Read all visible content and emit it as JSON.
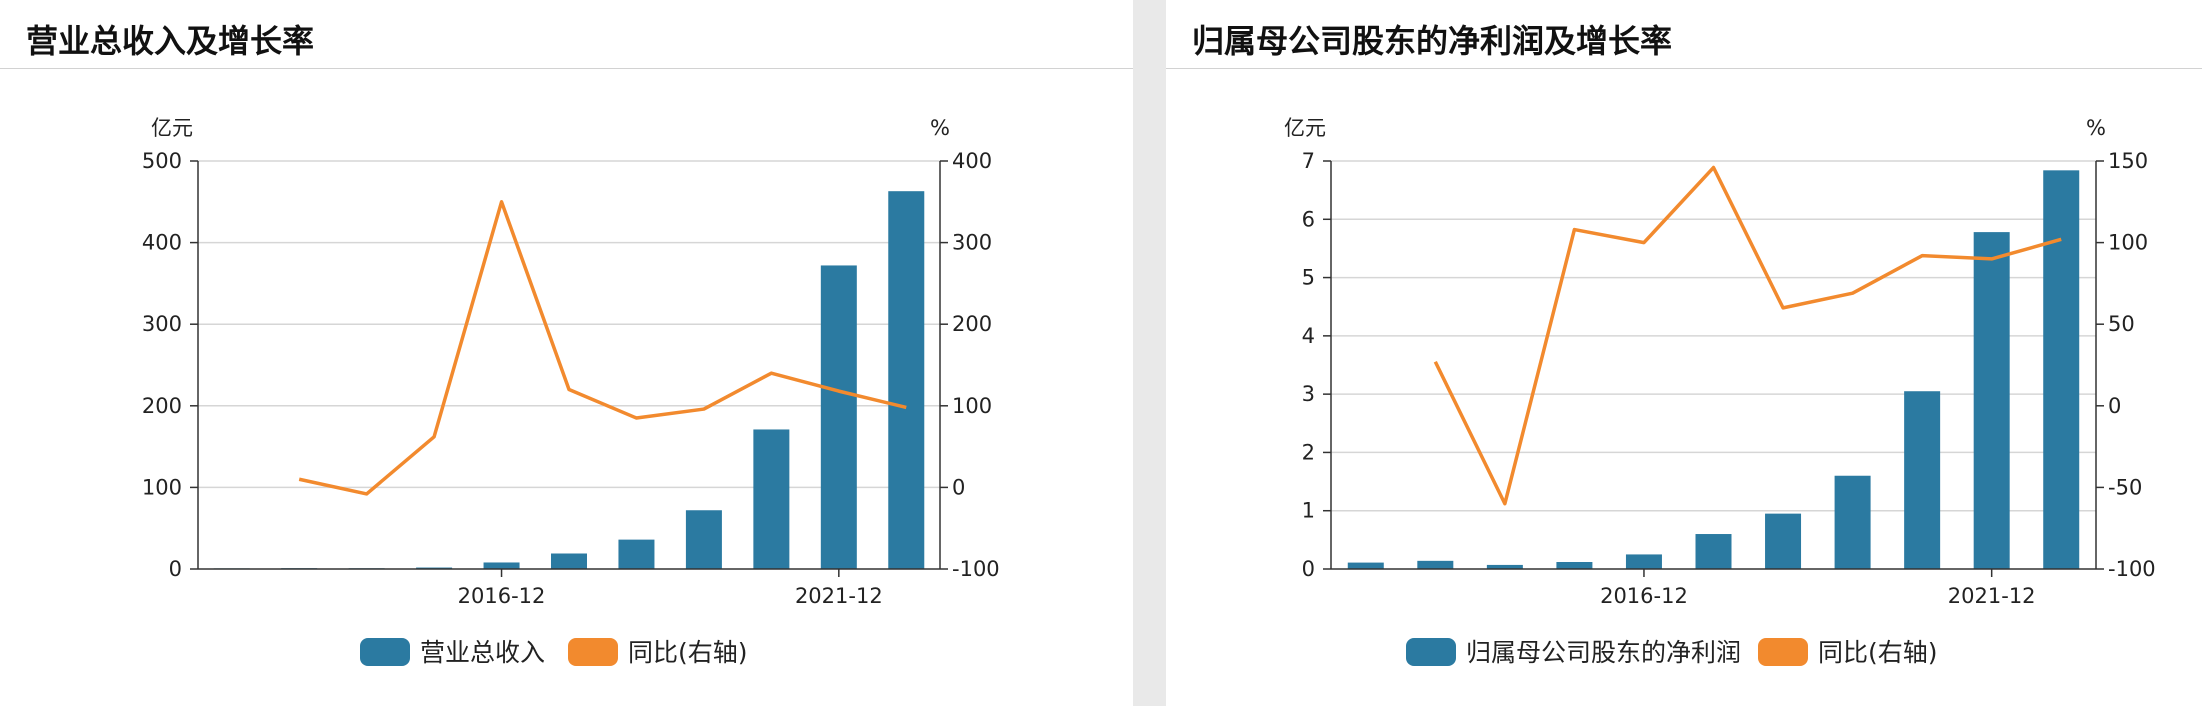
{
  "colors": {
    "bar": "#2b7aa1",
    "line": "#f28a2e",
    "grid": "#d6d6d6",
    "axis": "#333333"
  },
  "panels": [
    {
      "title": "营业总收入及增长率",
      "chart_data": {
        "type": "bar",
        "title": "",
        "xlabel": "",
        "ylabel": "亿元",
        "y2label": "%",
        "ylim": [
          0,
          500
        ],
        "y2lim": [
          -100,
          400
        ],
        "yticks": [
          0,
          100,
          200,
          300,
          400,
          500
        ],
        "y2ticks": [
          -100,
          0,
          100,
          200,
          300,
          400
        ],
        "xtick_labels": [
          {
            "index": 4,
            "label": "2016-12"
          },
          {
            "index": 9,
            "label": "2021-12"
          }
        ],
        "grid": true,
        "legend_position": "bottom",
        "categories": [
          "",
          "",
          "",
          "",
          "",
          "",
          "",
          "",
          "",
          "",
          ""
        ],
        "series": [
          {
            "name": "营业总收入",
            "kind": "bar",
            "axis": "left",
            "values": [
              0.8,
              1.0,
              0.9,
              1.8,
              8,
              19,
              36,
              72,
              171,
              372,
              463
            ]
          },
          {
            "name": "同比(右轴)",
            "kind": "line",
            "axis": "right",
            "values": [
              null,
              10,
              -8,
              62,
              350,
              120,
              85,
              96,
              140,
              118,
              98
            ]
          }
        ]
      }
    },
    {
      "title": "归属母公司股东的净利润及增长率",
      "chart_data": {
        "type": "bar",
        "title": "",
        "xlabel": "",
        "ylabel": "亿元",
        "y2label": "%",
        "ylim": [
          0,
          7
        ],
        "y2lim": [
          -100,
          150
        ],
        "yticks": [
          0,
          1,
          2,
          3,
          4,
          5,
          6,
          7
        ],
        "y2ticks": [
          -100,
          -50,
          0,
          50,
          100,
          150
        ],
        "xtick_labels": [
          {
            "index": 4,
            "label": "2016-12"
          },
          {
            "index": 9,
            "label": "2021-12"
          }
        ],
        "grid": true,
        "legend_position": "bottom",
        "categories": [
          "",
          "",
          "",
          "",
          "",
          "",
          "",
          "",
          "",
          "",
          ""
        ],
        "series": [
          {
            "name": "归属母公司股东的净利润",
            "kind": "bar",
            "axis": "left",
            "values": [
              0.11,
              0.14,
              0.07,
              0.12,
              0.25,
              0.6,
              0.95,
              1.6,
              3.05,
              5.78,
              6.84
            ]
          },
          {
            "name": "同比(右轴)",
            "kind": "line",
            "axis": "right",
            "values": [
              null,
              27,
              -60,
              108,
              100,
              146,
              60,
              69,
              92,
              90,
              102
            ]
          }
        ]
      }
    }
  ]
}
